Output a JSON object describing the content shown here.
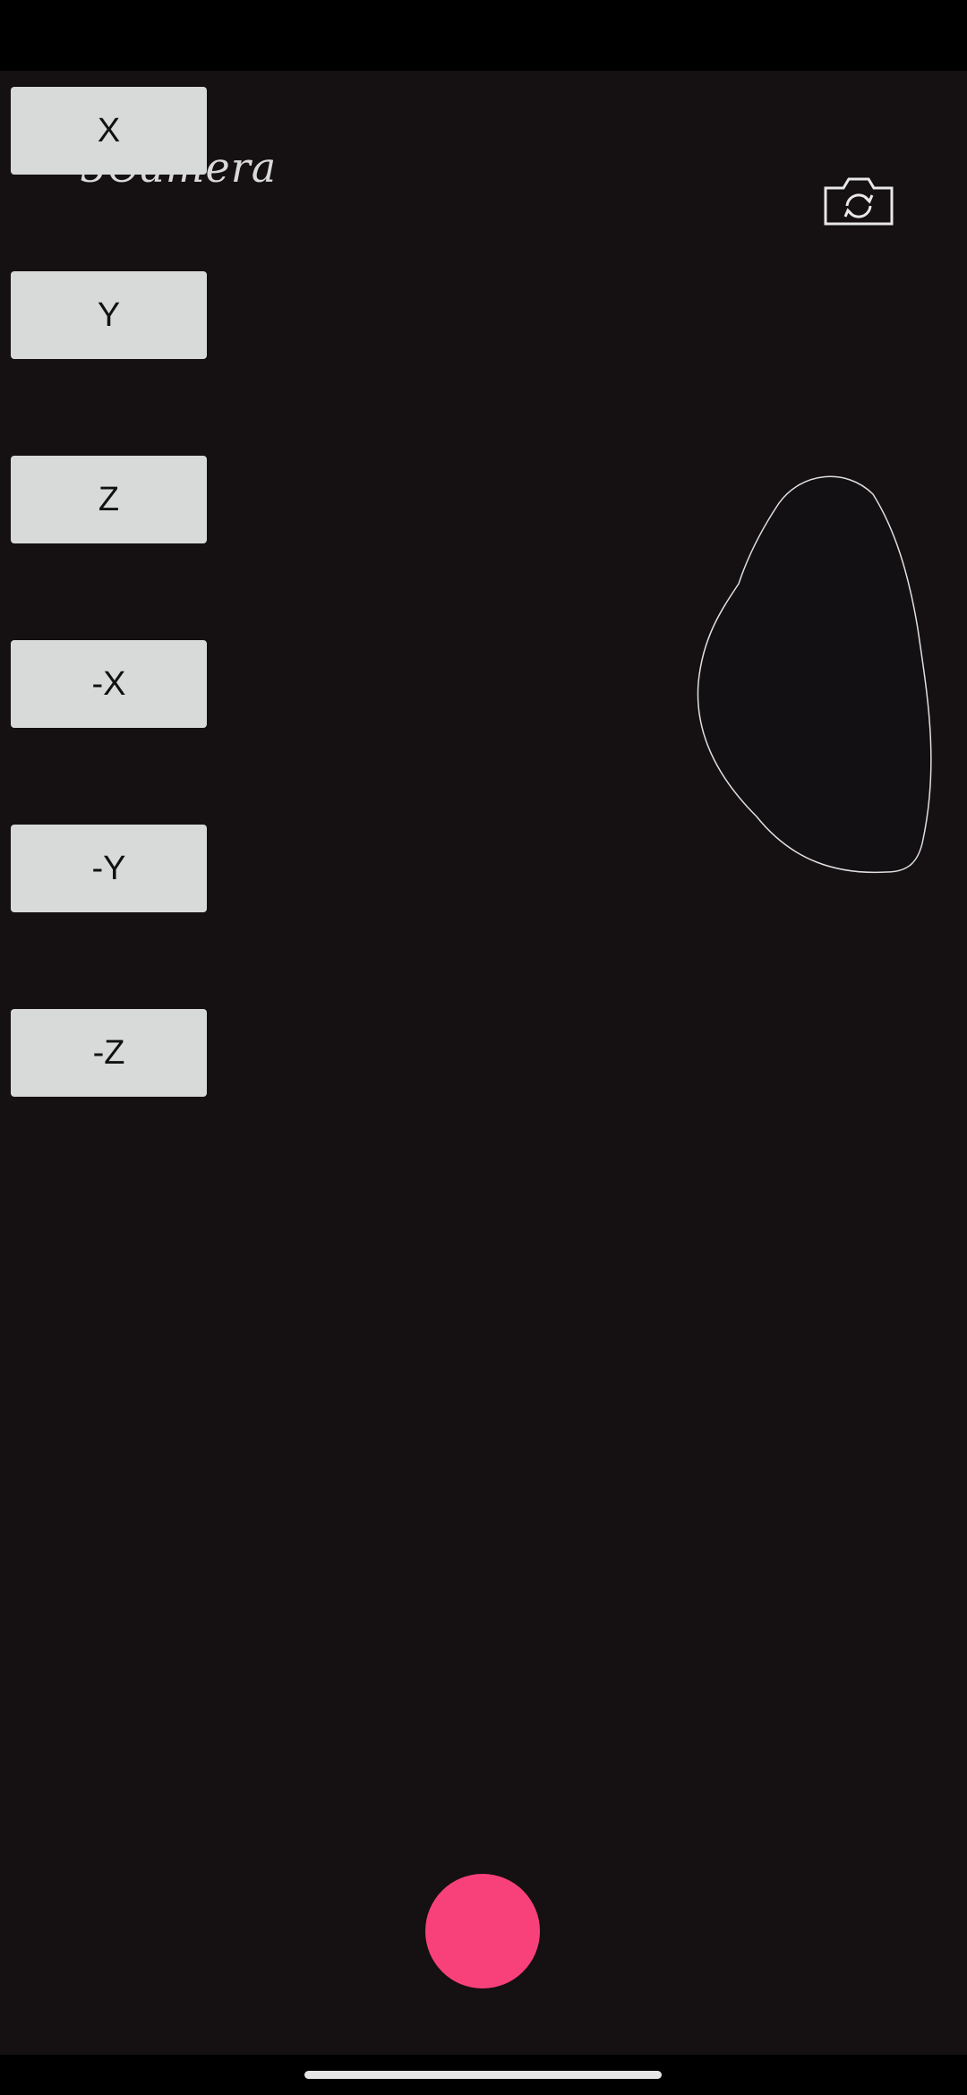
{
  "app": {
    "title": "3Camera",
    "buttons": [
      "X",
      "Y",
      "Z",
      "-X",
      "-Y",
      "-Z"
    ]
  }
}
